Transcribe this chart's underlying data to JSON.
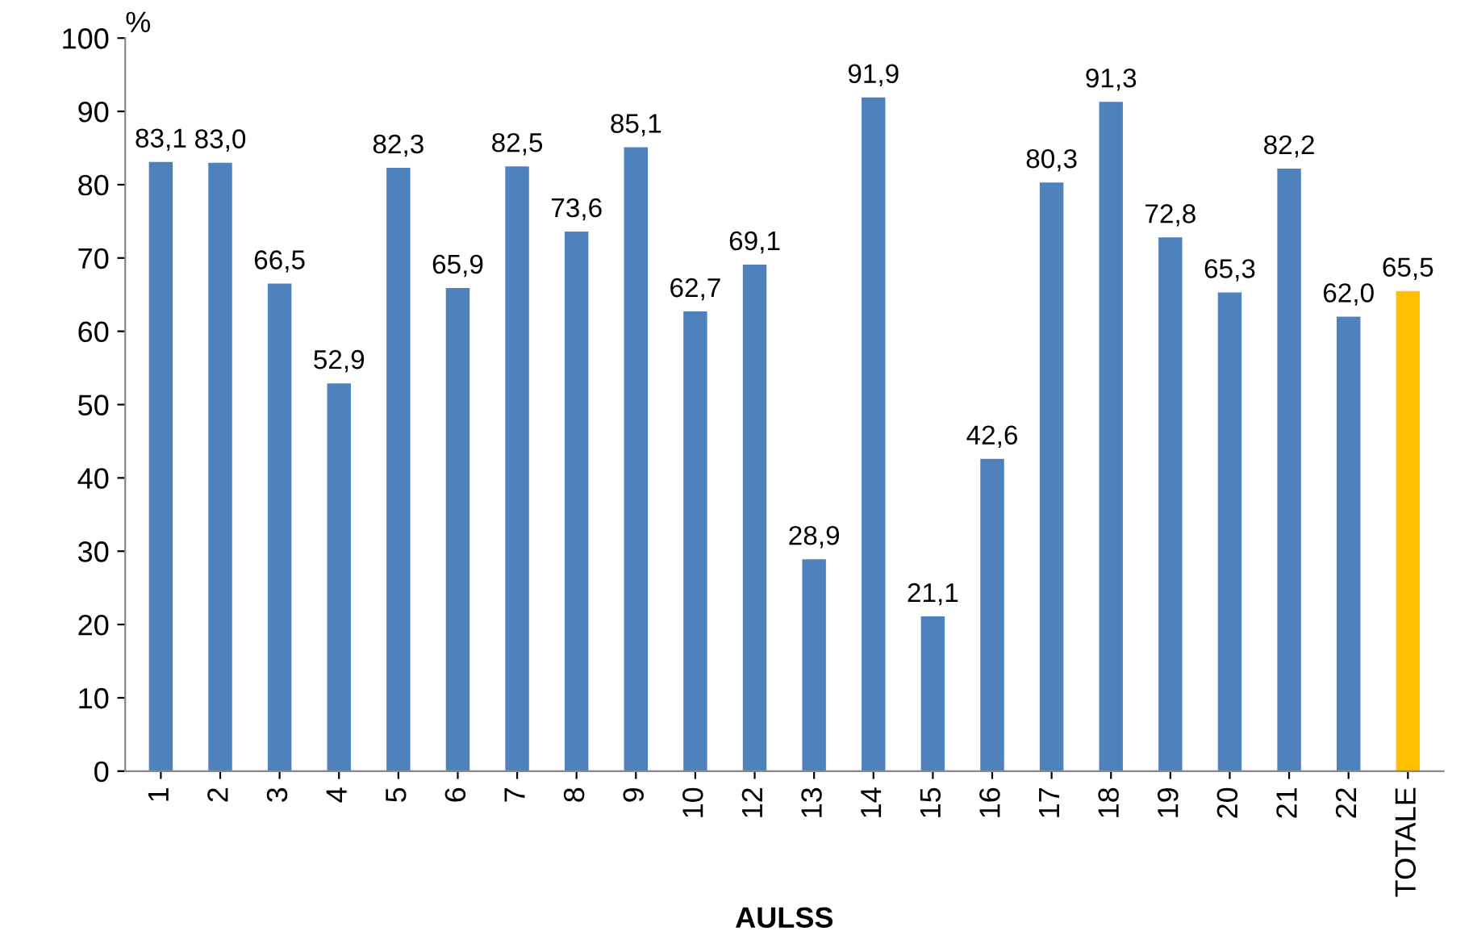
{
  "chart_data": {
    "type": "bar",
    "xlabel": "AULSS",
    "ylabel": "%",
    "categories": [
      "1",
      "2",
      "3",
      "4",
      "5",
      "6",
      "7",
      "8",
      "9",
      "10",
      "12",
      "13",
      "14",
      "15",
      "16",
      "17",
      "18",
      "19",
      "20",
      "21",
      "22",
      "TOTALE"
    ],
    "values": [
      83.1,
      83.0,
      66.5,
      52.9,
      82.3,
      65.9,
      82.5,
      73.6,
      85.1,
      62.7,
      69.1,
      28.9,
      91.9,
      21.1,
      42.6,
      80.3,
      91.3,
      72.8,
      65.3,
      82.2,
      62.0,
      65.5
    ],
    "colors": [
      "#4f81bd",
      "#4f81bd",
      "#4f81bd",
      "#4f81bd",
      "#4f81bd",
      "#4f81bd",
      "#4f81bd",
      "#4f81bd",
      "#4f81bd",
      "#4f81bd",
      "#4f81bd",
      "#4f81bd",
      "#4f81bd",
      "#4f81bd",
      "#4f81bd",
      "#4f81bd",
      "#4f81bd",
      "#4f81bd",
      "#4f81bd",
      "#4f81bd",
      "#4f81bd",
      "#ffc000"
    ],
    "value_labels": [
      "83,1",
      "83,0",
      "66,5",
      "52,9",
      "82,3",
      "65,9",
      "82,5",
      "73,6",
      "85,1",
      "62,7",
      "69,1",
      "28,9",
      "91,9",
      "21,1",
      "42,6",
      "80,3",
      "91,3",
      "72,8",
      "65,3",
      "82,2",
      "62,0",
      "65,5"
    ],
    "ylim": [
      0,
      100
    ],
    "yticks": [
      0,
      10,
      20,
      30,
      40,
      50,
      60,
      70,
      80,
      90,
      100
    ],
    "grid": false,
    "legend": false
  }
}
